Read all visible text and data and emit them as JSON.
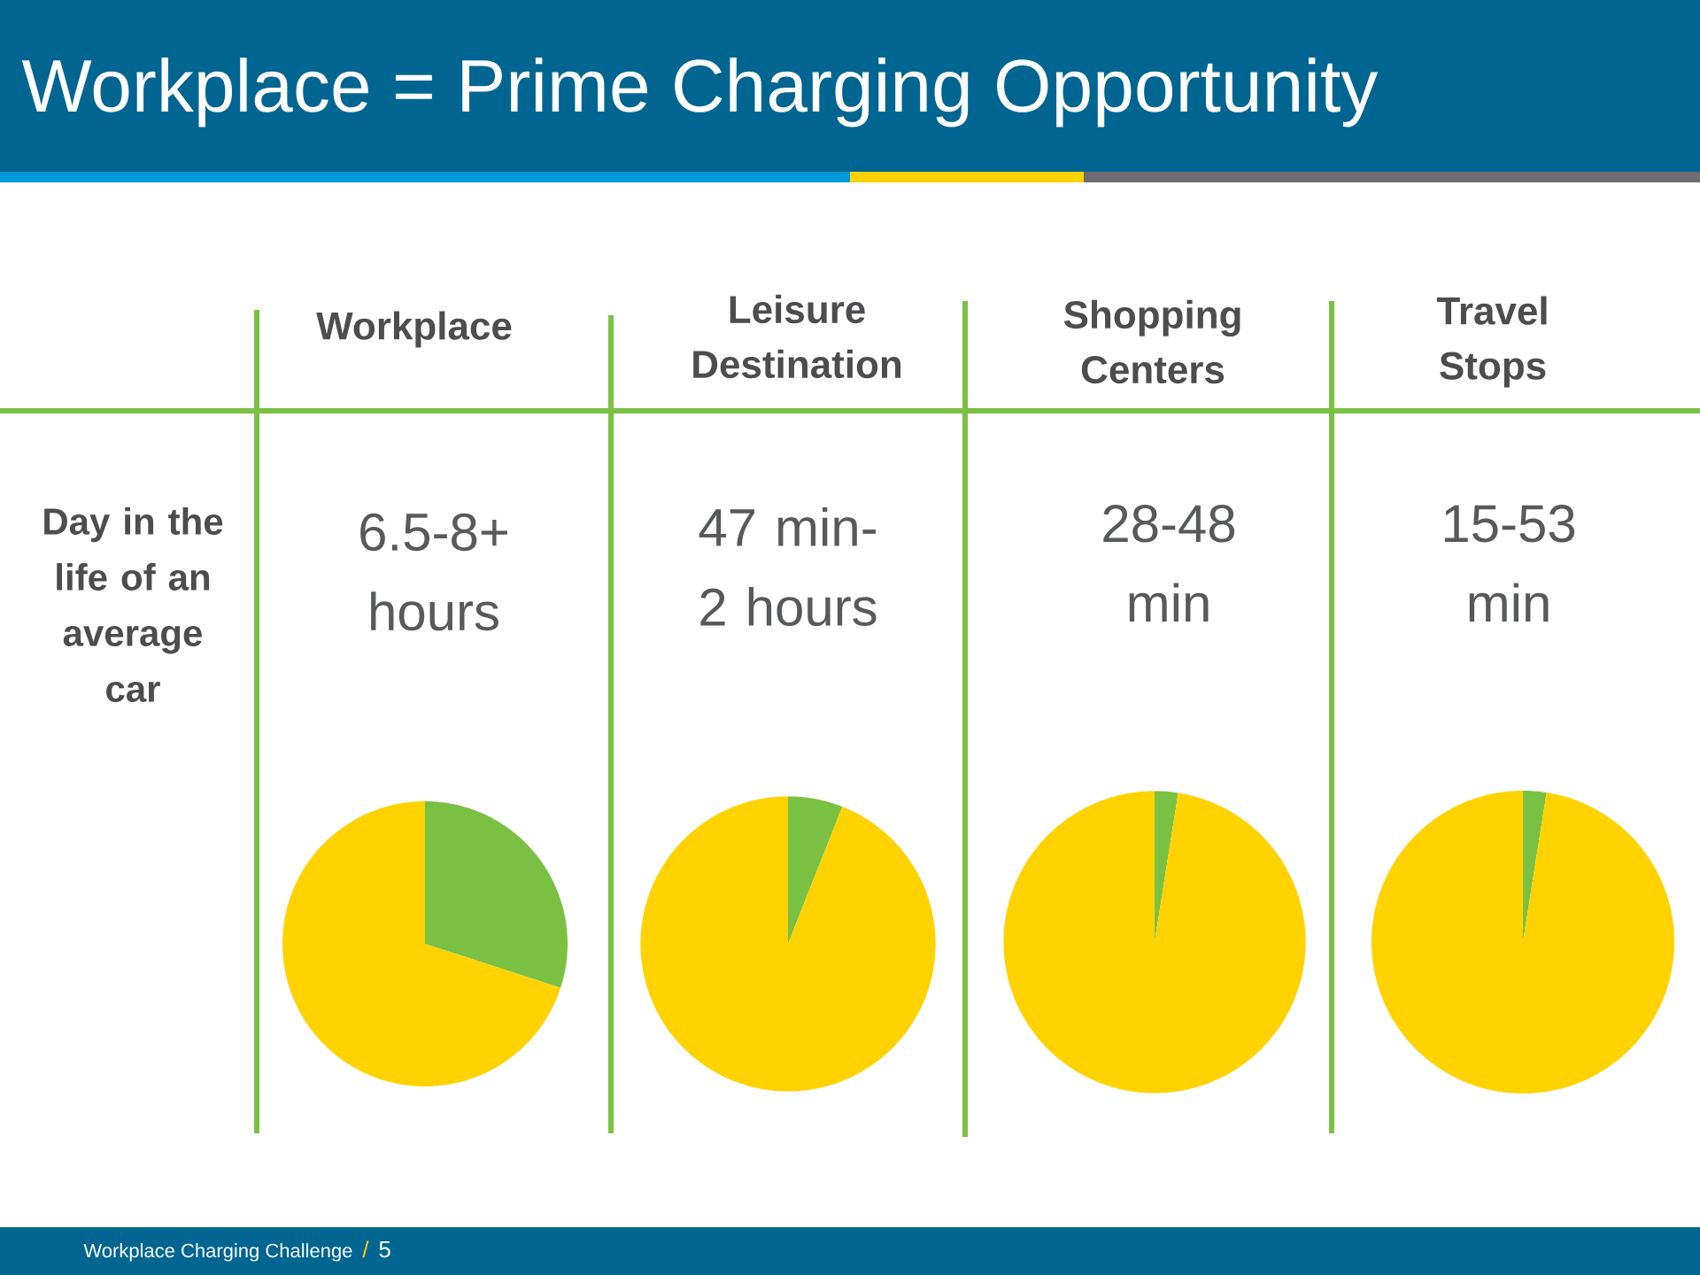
{
  "chart_data": [
    {
      "type": "other",
      "title": "Workplace = Prime Charging Opportunity",
      "annotations": [
        "Day in the life of an average car",
        "Workplace Charging Challenge",
        "/",
        "5"
      ]
    },
    {
      "type": "pie",
      "title": "Workplace",
      "subtitle": "6.5-8+ hours",
      "categories": [
        null,
        null
      ],
      "values": [
        30,
        70
      ],
      "colors": [
        "#7ac143",
        "#ffd200"
      ]
    },
    {
      "type": "pie",
      "title": "Leisure Destination",
      "subtitle": "47 min- 2 hours",
      "categories": [
        null,
        null
      ],
      "values": [
        6,
        94
      ],
      "colors": [
        "#7ac143",
        "#ffd200"
      ]
    },
    {
      "type": "pie",
      "title": "Shopping Centers",
      "subtitle": "28-48 min",
      "categories": [
        null,
        null
      ],
      "values": [
        2.5,
        97.5
      ],
      "colors": [
        "#7ac143",
        "#ffd200"
      ]
    },
    {
      "type": "pie",
      "title": "Travel Stops",
      "subtitle": "15-53 min",
      "categories": [
        null,
        null
      ],
      "values": [
        2.5,
        97.5
      ],
      "colors": [
        "#7ac143",
        "#ffd200"
      ]
    }
  ]
}
